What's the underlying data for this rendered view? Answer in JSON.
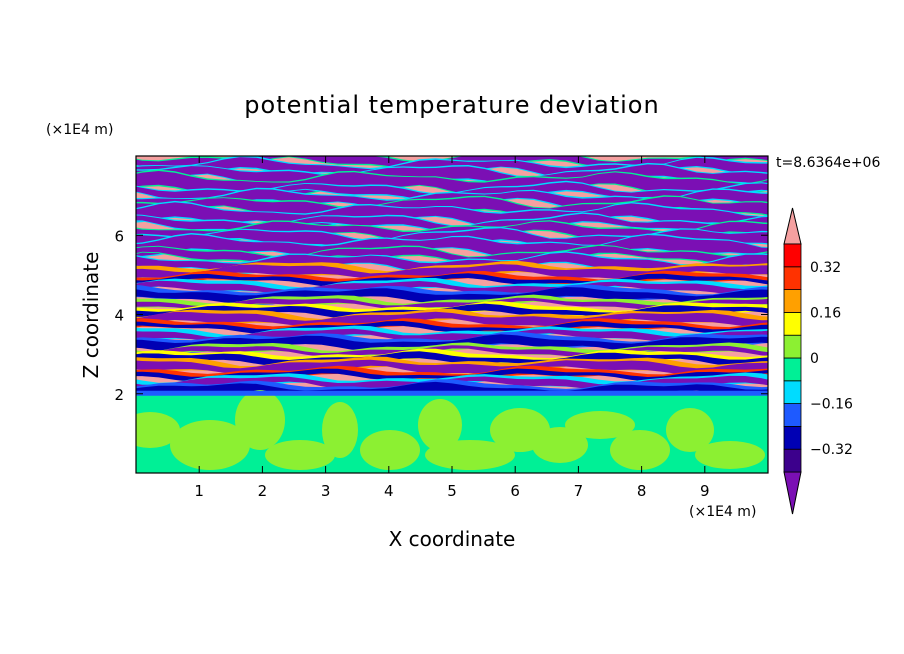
{
  "chart_data": {
    "type": "heatmap",
    "title": "potential temperature deviation",
    "xlabel": "X coordinate",
    "ylabel": "Z coordinate",
    "x_unit": "(×1E4 m)",
    "y_unit": "(×1E4 m)",
    "time_label": "t=8.6364e+06",
    "xlim": [
      0,
      10
    ],
    "ylim": [
      0,
      8
    ],
    "x_ticks": [
      1,
      2,
      3,
      4,
      5,
      6,
      7,
      8,
      9
    ],
    "y_ticks": [
      2,
      4,
      6
    ],
    "x_tick_labels": [
      "1",
      "2",
      "3",
      "4",
      "5",
      "6",
      "7",
      "8",
      "9"
    ],
    "y_tick_labels": [
      "2",
      "4",
      "6"
    ],
    "colorbar": {
      "levels": [
        -0.4,
        -0.32,
        -0.24,
        -0.16,
        -0.08,
        0,
        0.08,
        0.16,
        0.24,
        0.32,
        0.4
      ],
      "labels": [
        {
          "value": 0.32,
          "text": "0.32"
        },
        {
          "value": 0.16,
          "text": "0.16"
        },
        {
          "value": 0,
          "text": "0"
        },
        {
          "value": -0.16,
          "text": "−0.16"
        },
        {
          "value": -0.32,
          "text": "−0.32"
        }
      ],
      "colors": [
        "#7b0fb4",
        "#3c008c",
        "#0000b4",
        "#1e5aff",
        "#00dcff",
        "#00f096",
        "#8cf032",
        "#ffff00",
        "#ffa000",
        "#ff3200",
        "#ff0000",
        "#f5a0a0"
      ],
      "under_color": "#7b0fb4",
      "over_color": "#f5a0a0"
    },
    "field": {
      "lower_boundary_z": 2.0,
      "lower_region_colors": [
        "#00f096",
        "#8cf032"
      ],
      "layer_count": 30
    }
  }
}
